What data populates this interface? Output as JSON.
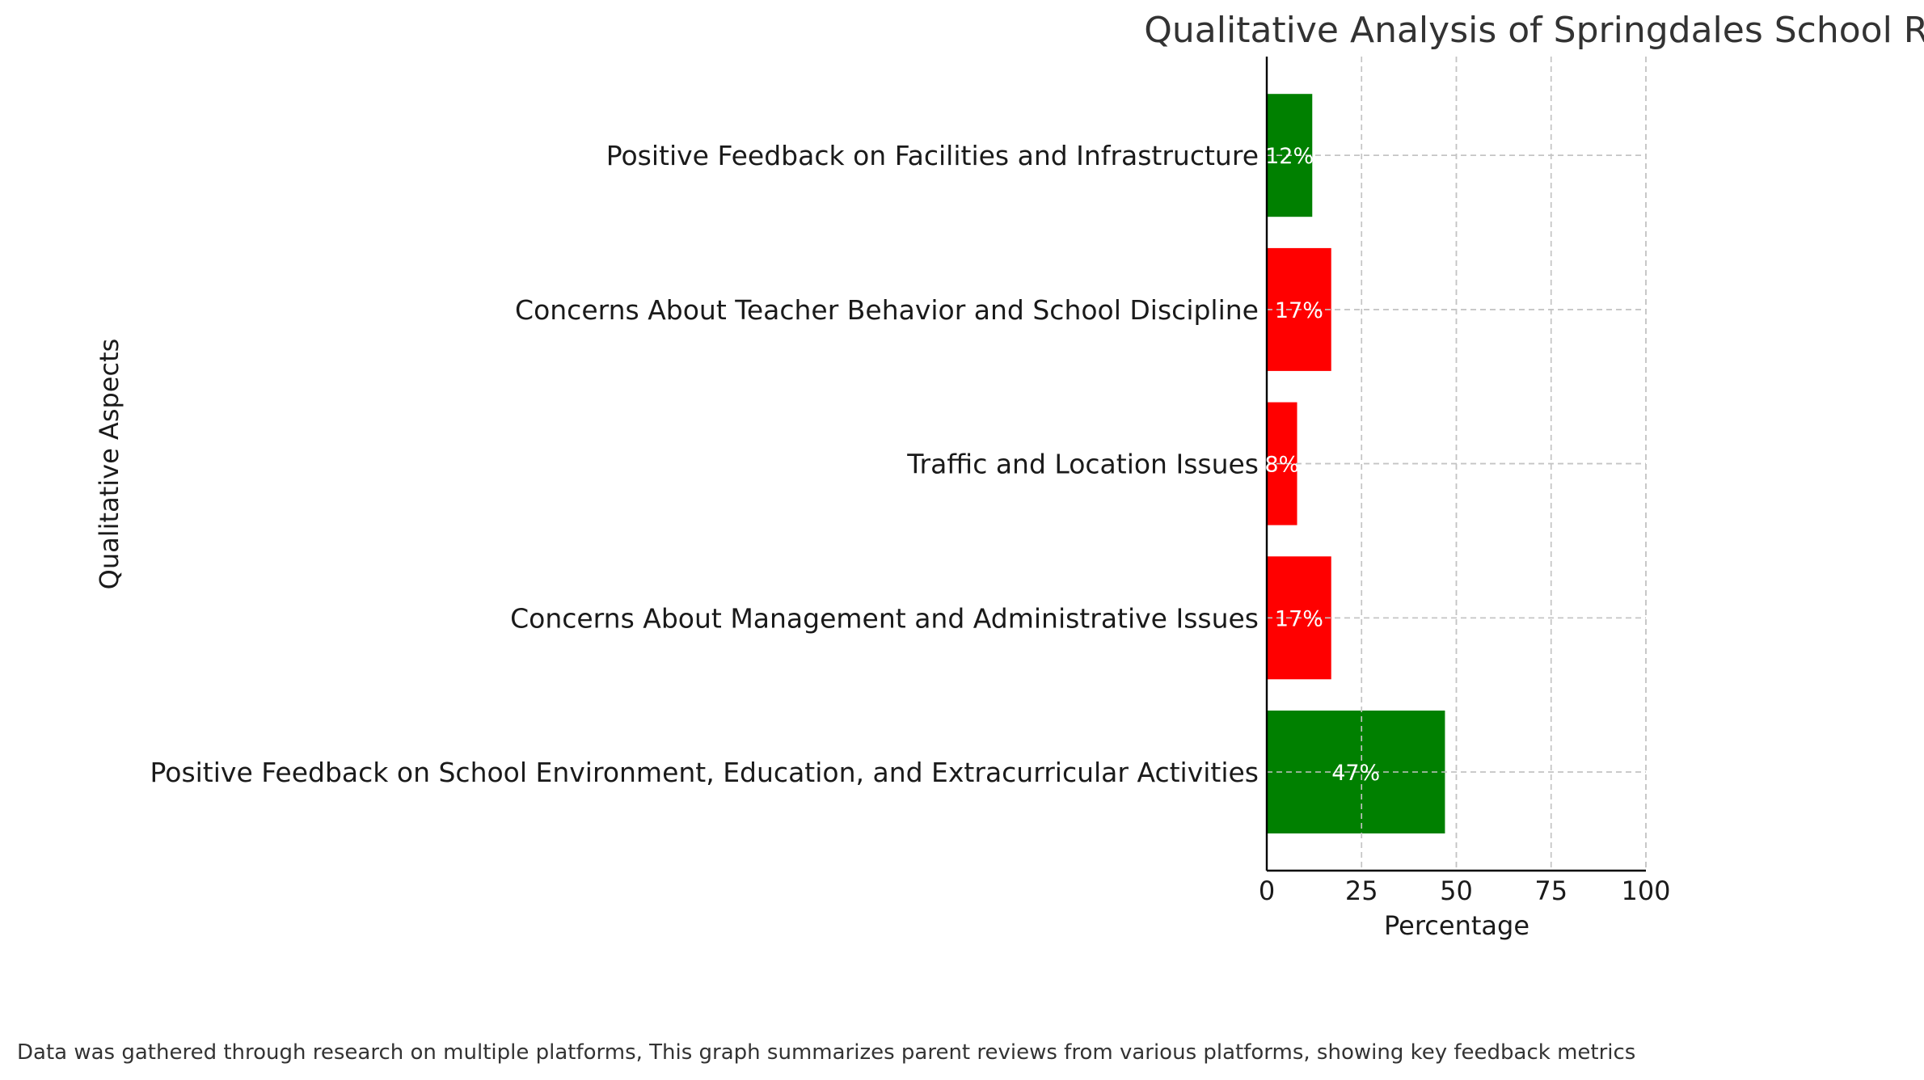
{
  "chart_data": {
    "type": "bar",
    "orientation": "horizontal",
    "title": "Qualitative Analysis of Springdales School Reviews",
    "xlabel": "Percentage",
    "ylabel": "Qualitative Aspects",
    "xlim": [
      0,
      100
    ],
    "xticks": [
      "0",
      "25",
      "50",
      "75",
      "100"
    ],
    "grid": true,
    "categories": [
      "Positive Feedback on School Environment, Education, and Extracurricular Activities",
      "Concerns About Management and Administrative Issues",
      "Traffic and Location Issues",
      "Concerns About Teacher Behavior and School Discipline",
      "Positive Feedback on Facilities and Infrastructure"
    ],
    "values": [
      47,
      17,
      8,
      17,
      12
    ],
    "data_labels": [
      "47%",
      "17%",
      "8%",
      "17%",
      "12%"
    ],
    "colors": [
      "#008000",
      "#ff0000",
      "#ff0000",
      "#ff0000",
      "#008000"
    ]
  },
  "footnote": "Data was gathered through research on multiple platforms, This graph summarizes parent reviews from various platforms, showing key feedback metrics"
}
